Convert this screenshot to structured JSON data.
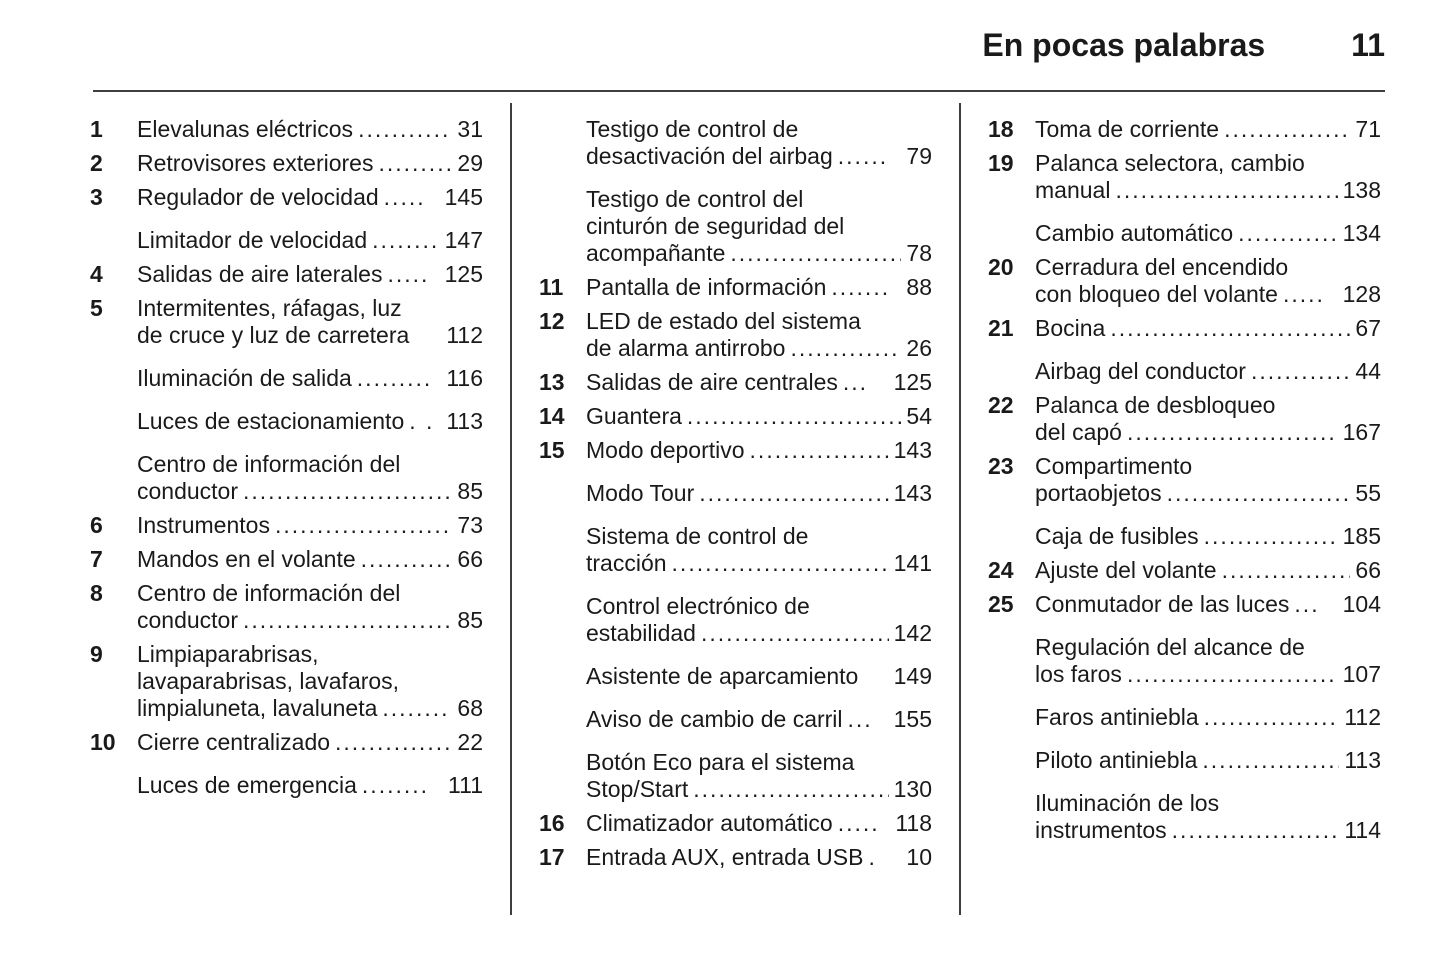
{
  "header": {
    "title": "En pocas palabras",
    "page_number": "11"
  },
  "colors": {
    "background": "#ffffff",
    "text": "#1a1a1a",
    "rule": "#3f3f3f"
  },
  "toc": {
    "columns": [
      {
        "entries": [
          {
            "num": "1",
            "lines": [],
            "last": "Elevalunas eléctricos",
            "dots": "........................................",
            "page": "31"
          },
          {
            "num": "2",
            "lines": [],
            "last": "Retrovisores exteriores",
            "dots": "........................................",
            "page": "29"
          },
          {
            "num": "3",
            "lines": [],
            "last": "Regulador de velocidad",
            "dots": ".....",
            "page": "145"
          },
          {
            "num": "",
            "lines": [],
            "last": "Limitador de velocidad",
            "dots": "........................................",
            "page": "147"
          },
          {
            "num": "4",
            "lines": [],
            "last": "Salidas de aire laterales",
            "dots": ".....",
            "page": "125"
          },
          {
            "num": "5",
            "lines": [
              "Intermitentes, ráfagas, luz"
            ],
            "last": "de cruce y luz de carretera",
            "dots": "",
            "page": "112"
          },
          {
            "num": "",
            "lines": [],
            "last": "Iluminación de salida",
            "dots": ".........",
            "page": "116"
          },
          {
            "num": "",
            "lines": [],
            "last": "Luces de estacionamiento",
            "dots": ". .",
            "page": "113"
          },
          {
            "num": "",
            "lines": [
              "Centro de información del"
            ],
            "last": "conductor",
            "dots": "........................................",
            "page": "85"
          },
          {
            "num": "6",
            "lines": [],
            "last": "Instrumentos",
            "dots": "........................................",
            "page": "73"
          },
          {
            "num": "7",
            "lines": [],
            "last": "Mandos en el volante",
            "dots": "...........",
            "page": "66"
          },
          {
            "num": "8",
            "lines": [
              "Centro de información del"
            ],
            "last": "conductor",
            "dots": "........................................",
            "page": "85"
          },
          {
            "num": "9",
            "lines": [
              "Limpiaparabrisas,",
              "lavaparabrisas, lavafaros,"
            ],
            "last": "limpialuneta, lavaluneta",
            "dots": "........",
            "page": "68"
          },
          {
            "num": "10",
            "lines": [],
            "last": "Cierre centralizado",
            "dots": "........................................",
            "page": "22"
          },
          {
            "num": "",
            "lines": [],
            "last": "Luces de emergencia",
            "dots": "........",
            "page": "111"
          }
        ]
      },
      {
        "entries": [
          {
            "num": "",
            "lines": [
              "Testigo de control de"
            ],
            "last": "desactivación del airbag",
            "dots": "......",
            "page": "79"
          },
          {
            "num": "",
            "lines": [
              "Testigo de control del",
              "cinturón de seguridad del"
            ],
            "last": "acompañante",
            "dots": "........................................",
            "page": "78"
          },
          {
            "num": "11",
            "lines": [],
            "last": "Pantalla de información",
            "dots": ".......",
            "page": "88"
          },
          {
            "num": "12",
            "lines": [
              "LED de estado del sistema"
            ],
            "last": "de alarma antirrobo",
            "dots": "..............",
            "page": "26"
          },
          {
            "num": "13",
            "lines": [],
            "last": "Salidas de aire centrales",
            "dots": "...",
            "page": "125"
          },
          {
            "num": "14",
            "lines": [],
            "last": "Guantera",
            "dots": "........................................",
            "page": "54"
          },
          {
            "num": "15",
            "lines": [],
            "last": "Modo deportivo",
            "dots": "...................",
            "page": "143"
          },
          {
            "num": "",
            "lines": [],
            "last": "Modo Tour",
            "dots": ".........................",
            "page": "143"
          },
          {
            "num": "",
            "lines": [
              "Sistema de control de"
            ],
            "last": "tracción",
            "dots": "........................................",
            "page": "141"
          },
          {
            "num": "",
            "lines": [
              "Control electrónico de"
            ],
            "last": "estabilidad",
            "dots": ".........................",
            "page": "142"
          },
          {
            "num": "",
            "lines": [],
            "last": "Asistente de aparcamiento",
            "dots": "",
            "page": "149"
          },
          {
            "num": "",
            "lines": [],
            "last": "Aviso de cambio de carril",
            "dots": "...",
            "page": "155"
          },
          {
            "num": "",
            "lines": [
              "Botón Eco para el sistema"
            ],
            "last": "Stop/Start",
            "dots": "........................................",
            "page": "130"
          },
          {
            "num": "16",
            "lines": [],
            "last": "Climatizador automático",
            "dots": ".....",
            "page": "118"
          },
          {
            "num": "17",
            "lines": [],
            "last": "Entrada AUX, entrada USB",
            "dots": ".",
            "page": "10"
          }
        ]
      },
      {
        "entries": [
          {
            "num": "18",
            "lines": [],
            "last": "Toma de corriente",
            "dots": "........................................",
            "page": "71"
          },
          {
            "num": "19",
            "lines": [
              "Palanca selectora, cambio"
            ],
            "last": "manual",
            "dots": "........................................",
            "page": "138"
          },
          {
            "num": "",
            "lines": [],
            "last": "Cambio automático",
            "dots": "............",
            "page": "134"
          },
          {
            "num": "20",
            "lines": [
              "Cerradura del encendido"
            ],
            "last": "con bloqueo del volante",
            "dots": ".....",
            "page": "128"
          },
          {
            "num": "21",
            "lines": [],
            "last": "Bocina",
            "dots": "........................................",
            "page": "67"
          },
          {
            "num": "",
            "lines": [],
            "last": "Airbag del conductor",
            "dots": "............",
            "page": "44"
          },
          {
            "num": "22",
            "lines": [
              "Palanca de desbloqueo"
            ],
            "last": "del capó",
            "dots": "........................................",
            "page": "167"
          },
          {
            "num": "23",
            "lines": [
              "Compartimento"
            ],
            "last": "portaobjetos",
            "dots": "........................................",
            "page": "55"
          },
          {
            "num": "",
            "lines": [],
            "last": "Caja de fusibles",
            "dots": "..................",
            "page": "185"
          },
          {
            "num": "24",
            "lines": [],
            "last": "Ajuste del volante",
            "dots": "................",
            "page": "66"
          },
          {
            "num": "25",
            "lines": [],
            "last": "Conmutador de las luces",
            "dots": "...",
            "page": "104"
          },
          {
            "num": "",
            "lines": [
              "Regulación del alcance de"
            ],
            "last": "los faros",
            "dots": "........................................",
            "page": "107"
          },
          {
            "num": "",
            "lines": [],
            "last": "Faros antiniebla",
            "dots": ".................",
            "page": "112"
          },
          {
            "num": "",
            "lines": [],
            "last": "Piloto antiniebla",
            "dots": ".................",
            "page": "113"
          },
          {
            "num": "",
            "lines": [
              "Iluminación de los"
            ],
            "last": "instrumentos",
            "dots": ".....................",
            "page": "114"
          }
        ]
      }
    ]
  }
}
